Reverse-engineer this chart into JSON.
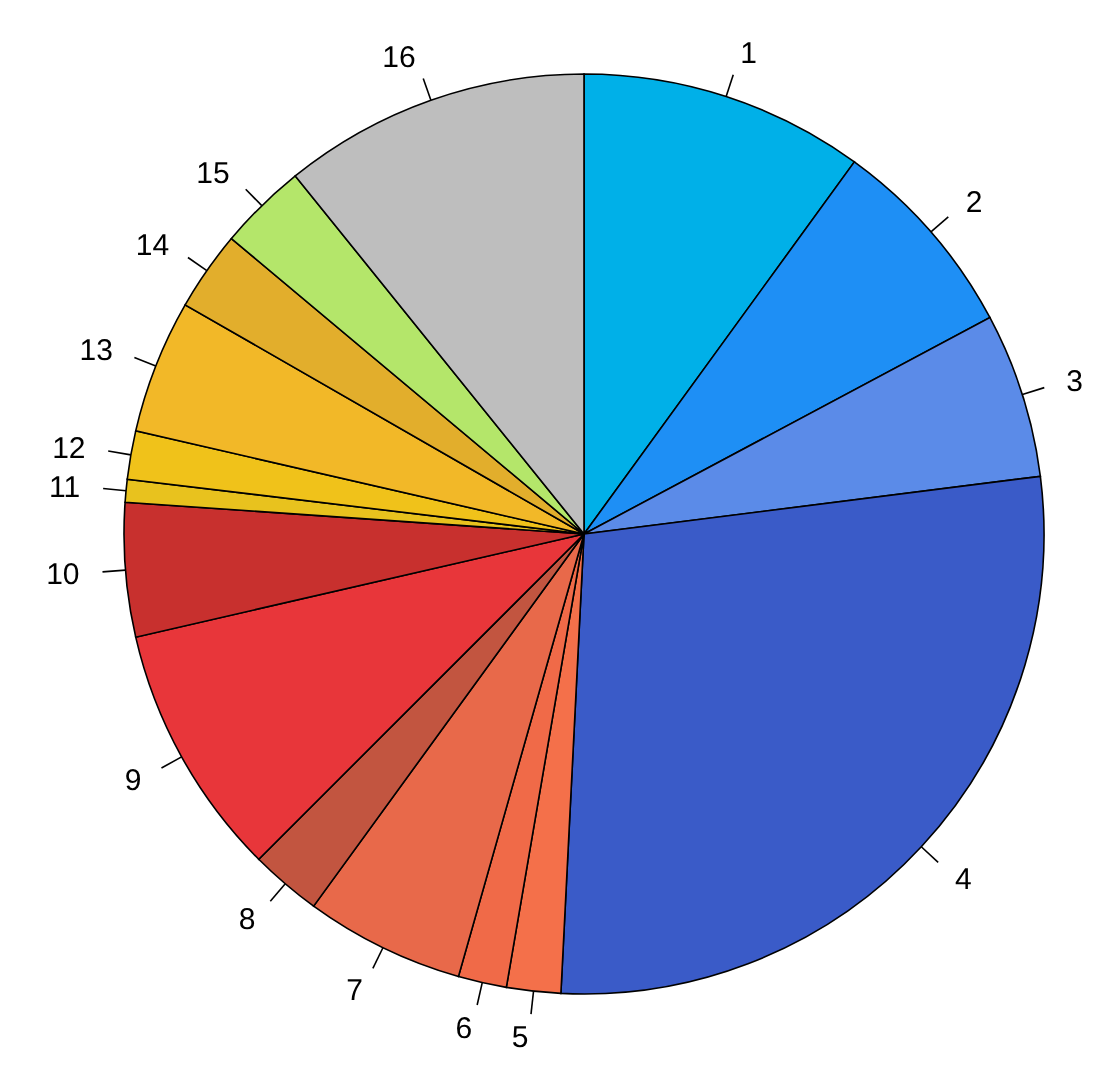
{
  "chart_data": {
    "type": "pie",
    "categories": [
      "1",
      "2",
      "3",
      "4",
      "5",
      "6",
      "7",
      "8",
      "9",
      "10",
      "11",
      "12",
      "13",
      "14",
      "15",
      "16"
    ],
    "values": [
      10.0,
      7.2,
      5.8,
      27.8,
      1.9,
      1.7,
      5.6,
      2.5,
      8.9,
      4.7,
      0.8,
      1.7,
      4.7,
      2.8,
      3.1,
      10.8
    ],
    "colors": [
      "#00b0e8",
      "#1e8ff5",
      "#5b8be8",
      "#3a5bc8",
      "#f4704a",
      "#f06a48",
      "#e8694a",
      "#c25540",
      "#e8363a",
      "#c8302e",
      "#e8c21e",
      "#f0c21a",
      "#f2b828",
      "#e2ae2c",
      "#b4e66a",
      "#bebebe"
    ]
  }
}
